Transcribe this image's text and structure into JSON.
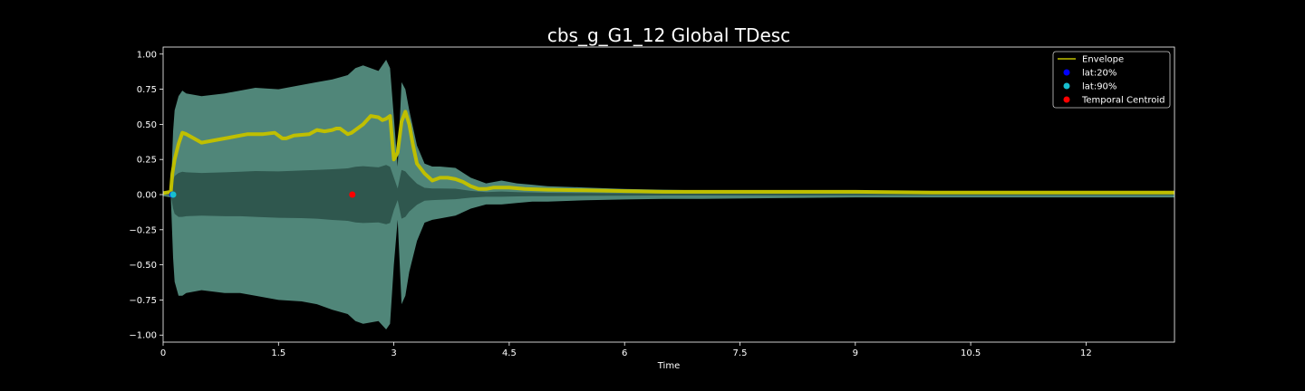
{
  "chart_data": {
    "type": "line",
    "title": "cbs_g_G1_12 Global TDesc",
    "xlabel": "Time",
    "ylabel": "",
    "xlim": [
      0,
      13.15
    ],
    "ylim": [
      -1.05,
      1.05
    ],
    "x_ticks": [
      0,
      1.5,
      3,
      4.5,
      6,
      7.5,
      9,
      10.5,
      12
    ],
    "x_tick_labels": [
      "0",
      "1.5",
      "3",
      "4.5",
      "6",
      "7.5",
      "9",
      "10.5",
      "12"
    ],
    "y_ticks": [
      1.0,
      0.75,
      0.5,
      0.25,
      0.0,
      -0.25,
      -0.5,
      -0.75,
      -1.0
    ],
    "y_tick_labels": [
      "1.00",
      "0.75",
      "0.50",
      "0.25",
      "0.00",
      "−0.25",
      "−0.50",
      "−0.75",
      "−1.00"
    ],
    "grid": false,
    "legend_position": "top-right",
    "waveform": {
      "x": [
        0,
        0.1,
        0.13,
        0.15,
        0.2,
        0.25,
        0.3,
        0.5,
        0.8,
        1.0,
        1.2,
        1.5,
        1.8,
        2.0,
        2.2,
        2.4,
        2.5,
        2.6,
        2.8,
        2.9,
        2.95,
        3.0,
        3.05,
        3.1,
        3.15,
        3.2,
        3.3,
        3.4,
        3.5,
        3.6,
        3.8,
        4.0,
        4.2,
        4.4,
        4.6,
        4.8,
        5.0,
        5.5,
        6.0,
        6.5,
        7.0,
        8.0,
        9.0,
        10.0,
        11.0,
        12.0,
        13.15
      ],
      "upper": [
        0.01,
        0.02,
        0.45,
        0.6,
        0.7,
        0.74,
        0.72,
        0.7,
        0.72,
        0.74,
        0.76,
        0.75,
        0.78,
        0.8,
        0.82,
        0.85,
        0.9,
        0.92,
        0.88,
        0.96,
        0.9,
        0.55,
        0.2,
        0.8,
        0.75,
        0.6,
        0.35,
        0.22,
        0.2,
        0.2,
        0.19,
        0.12,
        0.08,
        0.1,
        0.08,
        0.07,
        0.06,
        0.05,
        0.04,
        0.035,
        0.03,
        0.03,
        0.025,
        0.025,
        0.02,
        0.02,
        0.02
      ],
      "lower": [
        -0.01,
        -0.02,
        -0.45,
        -0.62,
        -0.72,
        -0.72,
        -0.7,
        -0.68,
        -0.7,
        -0.7,
        -0.72,
        -0.75,
        -0.76,
        -0.78,
        -0.82,
        -0.85,
        -0.9,
        -0.92,
        -0.9,
        -0.96,
        -0.92,
        -0.5,
        -0.18,
        -0.78,
        -0.72,
        -0.55,
        -0.33,
        -0.2,
        -0.18,
        -0.17,
        -0.15,
        -0.1,
        -0.07,
        -0.07,
        -0.06,
        -0.05,
        -0.05,
        -0.04,
        -0.035,
        -0.03,
        -0.03,
        -0.025,
        -0.02,
        -0.02,
        -0.02,
        -0.02,
        -0.02
      ]
    },
    "series": [
      {
        "name": "Envelope",
        "color": "#bfbf00",
        "x": [
          0,
          0.1,
          0.12,
          0.15,
          0.2,
          0.25,
          0.3,
          0.4,
          0.5,
          0.7,
          0.9,
          1.1,
          1.3,
          1.45,
          1.55,
          1.6,
          1.7,
          1.9,
          2.0,
          2.1,
          2.2,
          2.25,
          2.3,
          2.4,
          2.45,
          2.55,
          2.6,
          2.7,
          2.8,
          2.85,
          2.9,
          2.95,
          3.0,
          3.05,
          3.1,
          3.15,
          3.2,
          3.25,
          3.3,
          3.4,
          3.5,
          3.6,
          3.7,
          3.8,
          3.9,
          4.0,
          4.1,
          4.2,
          4.3,
          4.5,
          4.7,
          5.0,
          5.5,
          6.0,
          6.5,
          7.0,
          8.0,
          9.0,
          10.0,
          11.0,
          12.0,
          13.15
        ],
        "y": [
          0.01,
          0.02,
          0.15,
          0.25,
          0.36,
          0.44,
          0.43,
          0.4,
          0.37,
          0.39,
          0.41,
          0.43,
          0.43,
          0.44,
          0.4,
          0.4,
          0.42,
          0.43,
          0.46,
          0.45,
          0.46,
          0.47,
          0.47,
          0.43,
          0.44,
          0.48,
          0.5,
          0.56,
          0.55,
          0.53,
          0.54,
          0.56,
          0.25,
          0.3,
          0.52,
          0.59,
          0.5,
          0.35,
          0.22,
          0.15,
          0.1,
          0.12,
          0.12,
          0.11,
          0.09,
          0.06,
          0.04,
          0.04,
          0.05,
          0.05,
          0.04,
          0.035,
          0.03,
          0.025,
          0.02,
          0.02,
          0.02,
          0.02,
          0.015,
          0.015,
          0.015,
          0.015
        ]
      }
    ],
    "markers": [
      {
        "name": "lat:20%",
        "color": "#0000ff",
        "x": 0.12,
        "y": 0.0
      },
      {
        "name": "lat:90%",
        "color": "#17becf",
        "x": 0.13,
        "y": 0.0
      },
      {
        "name": "Temporal Centroid",
        "color": "#ff0000",
        "x": 2.46,
        "y": 0.0
      }
    ],
    "colors": {
      "background": "#000000",
      "axes": "#ffffff",
      "waveform_fill": "#5e9d8e",
      "waveform_inner": "#2b5249"
    }
  }
}
